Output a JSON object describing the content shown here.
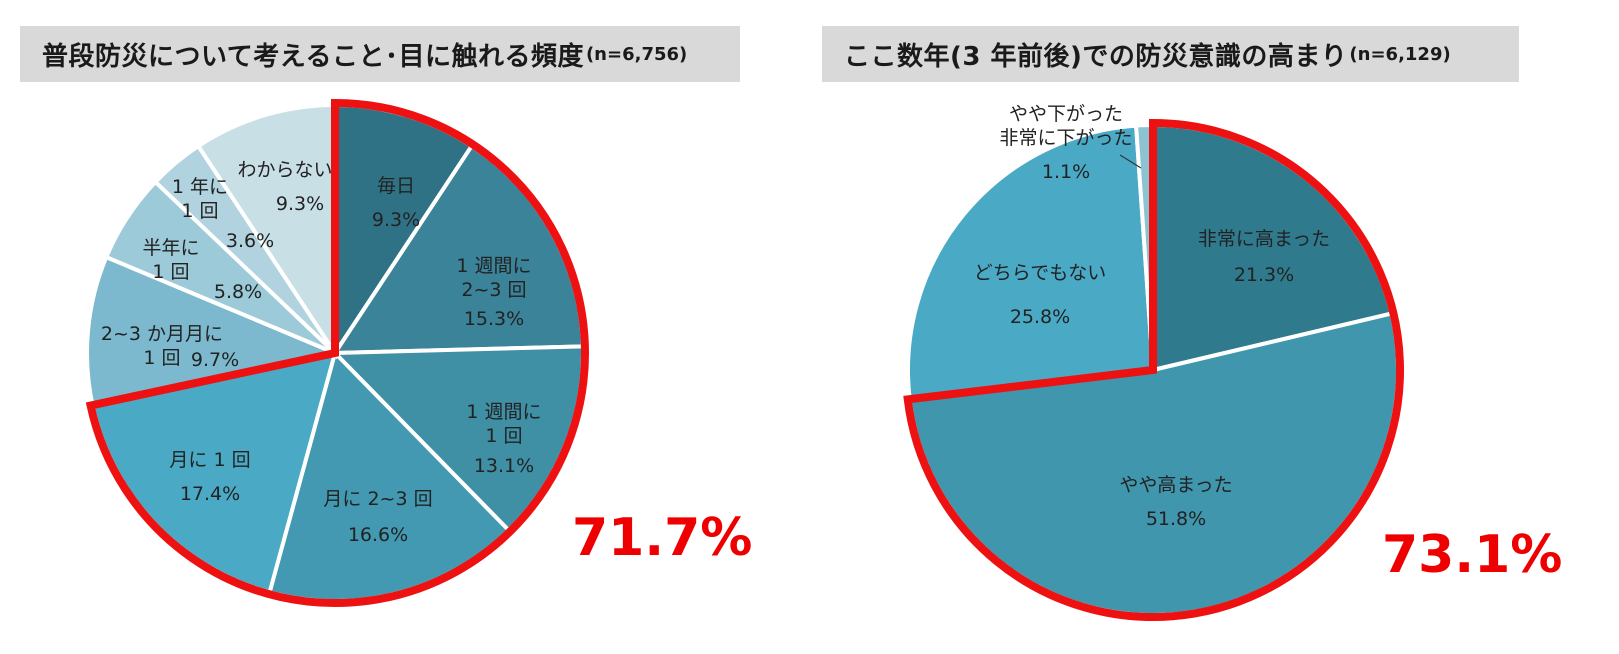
{
  "chart_data": [
    {
      "type": "pie",
      "title": "普段防災について考えること･目に触れる頻度",
      "n_label": "(n=6,756)",
      "highlight_total": "71.7%",
      "slices": [
        {
          "lines": [
            "毎日"
          ],
          "value_label": "9.3%",
          "value": 9.3,
          "color": "#2f7285",
          "highlighted": true
        },
        {
          "lines": [
            "1 週間に",
            "2~3 回"
          ],
          "value_label": "15.3%",
          "value": 15.3,
          "color": "#3a8399",
          "highlighted": true
        },
        {
          "lines": [
            "1 週間に",
            "1 回"
          ],
          "value_label": "13.1%",
          "value": 13.1,
          "color": "#3f8fa5",
          "highlighted": true
        },
        {
          "lines": [
            "月に 2~3 回"
          ],
          "value_label": "16.6%",
          "value": 16.6,
          "color": "#4399b2",
          "highlighted": true
        },
        {
          "lines": [
            "月に 1 回"
          ],
          "value_label": "17.4%",
          "value": 17.4,
          "color": "#4aaac6",
          "highlighted": true
        },
        {
          "lines": [
            "2~3 か月月に",
            "1 回"
          ],
          "value_label": "9.7%",
          "value": 9.7,
          "color": "#7cb9cf",
          "highlighted": false
        },
        {
          "lines": [
            "半年に",
            "1 回"
          ],
          "value_label": "5.8%",
          "value": 5.8,
          "color": "#9ccad9",
          "highlighted": false
        },
        {
          "lines": [
            "1 年に",
            "1 回"
          ],
          "value_label": "3.6%",
          "value": 3.6,
          "color": "#b0d3df",
          "highlighted": false
        },
        {
          "lines": [
            "わからない"
          ],
          "value_label": "9.3%",
          "value": 9.3,
          "color": "#c9dfe6",
          "highlighted": false
        }
      ]
    },
    {
      "type": "pie",
      "title": "ここ数年(3 年前後)での防災意識の高まり",
      "n_label": "(n=6,129)",
      "highlight_total": "73.1%",
      "slices": [
        {
          "lines": [
            "非常に高まった"
          ],
          "value_label": "21.3%",
          "value": 21.3,
          "color": "#2f7a8d",
          "highlighted": true
        },
        {
          "lines": [
            "やや高まった"
          ],
          "value_label": "51.8%",
          "value": 51.8,
          "color": "#3f96ad",
          "highlighted": true
        },
        {
          "lines": [
            "どちらでもない"
          ],
          "value_label": "25.8%",
          "value": 25.8,
          "color": "#4aaac6",
          "highlighted": false
        },
        {
          "lines": [
            "やや下がった",
            "非常に下がった"
          ],
          "value_label": "1.1%",
          "value": 1.1,
          "color": "#8cc3d3",
          "highlighted": false
        }
      ]
    }
  ]
}
